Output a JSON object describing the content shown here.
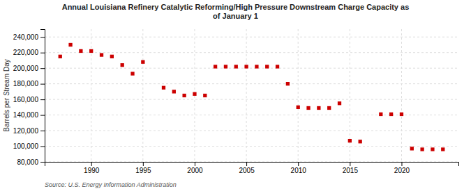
{
  "chart_data": {
    "type": "scatter",
    "title": "Annual Louisiana Refinery Catalytic Reforming/High Pressure Downstream Charge Capacity as\nof January 1",
    "ylabel": "Barrels per Stream Day",
    "source": "Source: U.S. Energy Information Administration",
    "color": "#cc0000",
    "marker": "square",
    "grid": true,
    "x": [
      1987,
      1988,
      1989,
      1990,
      1991,
      1992,
      1993,
      1994,
      1995,
      1997,
      1998,
      1999,
      2000,
      2001,
      2002,
      2003,
      2004,
      2005,
      2006,
      2007,
      2008,
      2009,
      2010,
      2011,
      2012,
      2013,
      2014,
      2015,
      2016,
      2018,
      2019,
      2020,
      2021,
      2022,
      2023,
      2024
    ],
    "values": [
      215000,
      230000,
      222000,
      222000,
      217000,
      215000,
      204000,
      193000,
      208000,
      175000,
      170000,
      165000,
      167000,
      165000,
      202000,
      202000,
      202000,
      202000,
      202000,
      202000,
      202000,
      180000,
      150000,
      149000,
      149000,
      149000,
      155000,
      107000,
      106000,
      141000,
      141000,
      141000,
      97000,
      96000,
      96000,
      96000
    ],
    "xlim": [
      1985.5,
      2025.5
    ],
    "xticks": [
      1990,
      1995,
      2000,
      2005,
      2010,
      2015,
      2020
    ],
    "ylim": [
      80000,
      250000
    ],
    "yticks": [
      {
        "value": 80000,
        "label": "80,000"
      },
      {
        "value": 100000,
        "label": "100,000"
      },
      {
        "value": 120000,
        "label": "120,000"
      },
      {
        "value": 140000,
        "label": "140,000"
      },
      {
        "value": 160000,
        "label": "160,000"
      },
      {
        "value": 180000,
        "label": "180,000"
      },
      {
        "value": 200000,
        "label": "200,000"
      },
      {
        "value": 220000,
        "label": "220,000"
      },
      {
        "value": 240000,
        "label": "240,000"
      }
    ]
  }
}
